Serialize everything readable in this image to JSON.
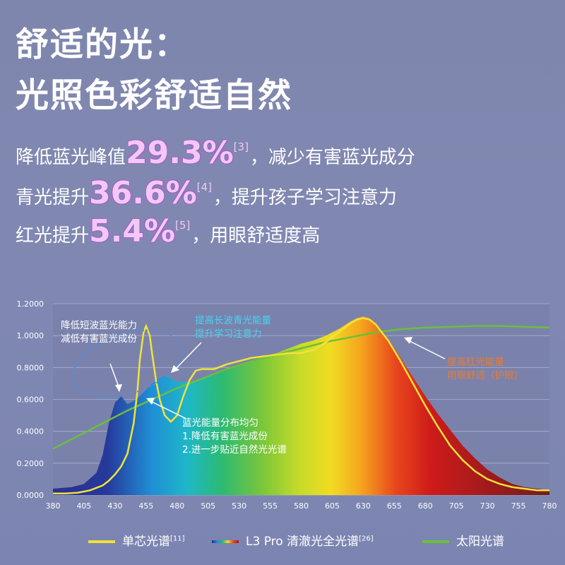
{
  "headline": {
    "line1": "舒适的光：",
    "line2": "光照色彩舒适自然"
  },
  "stats": [
    {
      "prefix": "降低蓝光峰值",
      "value": "29.3%",
      "ref": "[3]",
      "suffix": "，减少有害蓝光成分"
    },
    {
      "prefix": "青光提升",
      "value": "36.6%",
      "ref": "[4]",
      "suffix": "，提升孩子学习注意力"
    },
    {
      "prefix": "红光提升",
      "value": "5.4%",
      "ref": "[5]",
      "suffix": "，用眼舒适度高"
    }
  ],
  "legend": [
    {
      "label": "单芯光谱",
      "ref": "[11]",
      "color": "#f2e23a"
    },
    {
      "label": "L3 Pro 清澈光全光谱",
      "ref": "[26]",
      "color": "spectrum"
    },
    {
      "label": "太阳光谱",
      "ref": "",
      "color": "#6bbf3c"
    }
  ],
  "annotations": [
    {
      "lines": [
        "降低短波蓝光能力",
        "减低有害蓝光成份"
      ],
      "color": "#ffffff"
    },
    {
      "lines": [
        "提高长波青光能量",
        "提升学习注意力"
      ],
      "color": "#48d3f0"
    },
    {
      "lines": [
        "蓝光能量分布均匀",
        "1.降低有害蓝光成份",
        "2.进一步贴近自然光光谱"
      ],
      "color": "#ffffff"
    },
    {
      "lines": [
        "提高红光能量",
        "用眼舒适（护眼）"
      ],
      "color": "#f07a2a"
    }
  ],
  "chart_data": {
    "type": "line",
    "xlim": [
      380,
      780
    ],
    "ylim": [
      0,
      1.2
    ],
    "x_ticks": [
      380,
      405,
      430,
      455,
      480,
      505,
      530,
      555,
      580,
      605,
      630,
      655,
      680,
      705,
      730,
      755,
      780
    ],
    "y_ticks": [
      "0.0000",
      "0.2000",
      "0.4000",
      "0.6000",
      "0.8000",
      "1.0000",
      "1.2000"
    ],
    "series": [
      {
        "name": "L3 Pro 清澈光全光谱",
        "type": "area",
        "x": [
          380,
          395,
          405,
          415,
          420,
          425,
          430,
          435,
          440,
          445,
          450,
          455,
          460,
          465,
          470,
          475,
          480,
          490,
          500,
          510,
          520,
          530,
          540,
          550,
          560,
          570,
          580,
          590,
          600,
          610,
          620,
          625,
          630,
          635,
          640,
          650,
          660,
          670,
          680,
          690,
          700,
          710,
          720,
          730,
          740,
          750,
          760,
          770,
          780
        ],
        "y": [
          0.04,
          0.05,
          0.07,
          0.14,
          0.25,
          0.45,
          0.58,
          0.62,
          0.57,
          0.59,
          0.62,
          0.66,
          0.7,
          0.73,
          0.75,
          0.73,
          0.71,
          0.71,
          0.73,
          0.75,
          0.79,
          0.82,
          0.84,
          0.87,
          0.89,
          0.92,
          0.95,
          0.97,
          1.0,
          1.04,
          1.09,
          1.11,
          1.12,
          1.11,
          1.08,
          0.98,
          0.86,
          0.74,
          0.62,
          0.51,
          0.41,
          0.31,
          0.23,
          0.16,
          0.11,
          0.07,
          0.05,
          0.04,
          0.03
        ]
      },
      {
        "name": "单芯光谱",
        "type": "line",
        "x": [
          380,
          390,
          400,
          410,
          420,
          425,
          430,
          435,
          440,
          445,
          448,
          450,
          453,
          455,
          458,
          460,
          463,
          466,
          470,
          475,
          480,
          485,
          490,
          495,
          500,
          505,
          510,
          520,
          530,
          540,
          550,
          560,
          570,
          580,
          590,
          600,
          610,
          620,
          625,
          630,
          635,
          640,
          650,
          660,
          670,
          680,
          690,
          700,
          710,
          720,
          730,
          740,
          750,
          760,
          770,
          780
        ],
        "y": [
          0.01,
          0.01,
          0.015,
          0.03,
          0.06,
          0.09,
          0.13,
          0.18,
          0.26,
          0.45,
          0.65,
          0.85,
          1.02,
          1.06,
          1.0,
          0.88,
          0.72,
          0.6,
          0.5,
          0.46,
          0.5,
          0.62,
          0.72,
          0.78,
          0.79,
          0.79,
          0.79,
          0.82,
          0.84,
          0.86,
          0.87,
          0.88,
          0.89,
          0.89,
          0.91,
          0.96,
          1.02,
          1.08,
          1.1,
          1.11,
          1.1,
          1.07,
          0.97,
          0.84,
          0.7,
          0.56,
          0.43,
          0.31,
          0.22,
          0.15,
          0.1,
          0.07,
          0.05,
          0.04,
          0.03,
          0.03
        ]
      },
      {
        "name": "太阳光谱",
        "type": "line",
        "x": [
          380,
          400,
          420,
          440,
          460,
          480,
          500,
          520,
          540,
          560,
          580,
          600,
          620,
          640,
          660,
          680,
          700,
          720,
          740,
          760,
          780
        ],
        "y": [
          0.29,
          0.37,
          0.45,
          0.53,
          0.6,
          0.67,
          0.73,
          0.79,
          0.84,
          0.88,
          0.92,
          0.96,
          0.99,
          1.02,
          1.04,
          1.05,
          1.055,
          1.06,
          1.06,
          1.055,
          1.05
        ]
      }
    ]
  }
}
